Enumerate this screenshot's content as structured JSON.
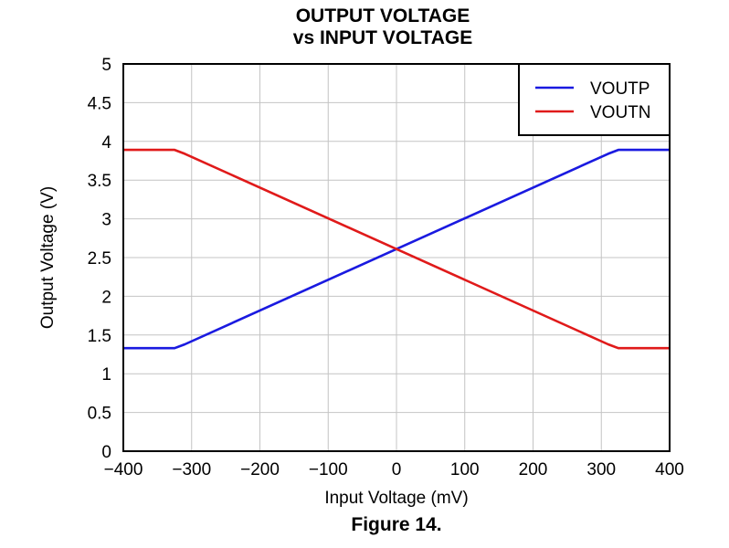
{
  "chart_data": {
    "type": "line",
    "title": "OUTPUT VOLTAGE",
    "subtitle": "vs INPUT VOLTAGE",
    "xlabel": "Input Voltage (mV)",
    "ylabel": "Output Voltage (V)",
    "xlim": [
      -400,
      400
    ],
    "ylim": [
      0,
      5
    ],
    "xticks": [
      -400,
      -300,
      -200,
      -100,
      0,
      100,
      200,
      300,
      400
    ],
    "xtick_labels": [
      "−400",
      "−300",
      "−200",
      "−100",
      "0",
      "100",
      "200",
      "300",
      "400"
    ],
    "yticks": [
      0,
      0.5,
      1,
      1.5,
      2,
      2.5,
      3,
      3.5,
      4,
      4.5,
      5
    ],
    "ytick_labels": [
      "0",
      "0.5",
      "1",
      "1.5",
      "2",
      "2.5",
      "3",
      "3.5",
      "4",
      "4.5",
      "5"
    ],
    "grid": true,
    "legend_position": "top-right",
    "series": [
      {
        "name": "VOUTP",
        "color": "#1a1ae0",
        "points": [
          [
            -400,
            1.33
          ],
          [
            -325,
            1.33
          ],
          [
            -310,
            1.38
          ],
          [
            0,
            2.61
          ],
          [
            310,
            3.84
          ],
          [
            325,
            3.89
          ],
          [
            400,
            3.89
          ]
        ]
      },
      {
        "name": "VOUTN",
        "color": "#e01a1a",
        "points": [
          [
            -400,
            3.89
          ],
          [
            -325,
            3.89
          ],
          [
            -310,
            3.84
          ],
          [
            0,
            2.61
          ],
          [
            310,
            1.38
          ],
          [
            325,
            1.33
          ],
          [
            400,
            1.33
          ]
        ]
      }
    ]
  },
  "caption": "Figure 14."
}
